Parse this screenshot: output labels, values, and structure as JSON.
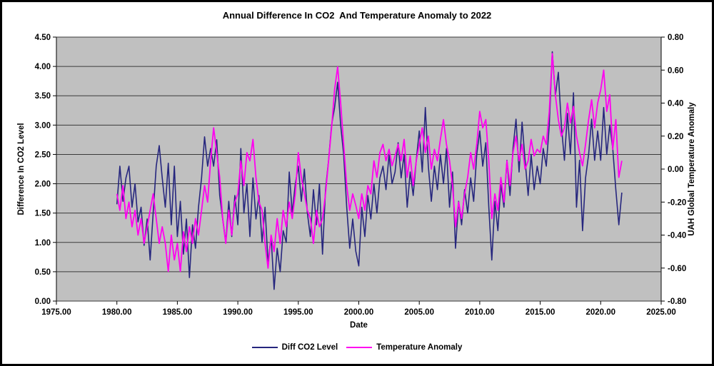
{
  "chart_data": {
    "type": "line",
    "title": "Annual Difference In CO2  And Temperature Anomaly to 2022",
    "xlabel": "Date",
    "ylabel": "Difference In CO2 Level",
    "ylabel_right": "UAH Global Temperature Anomaly",
    "xlim": [
      1975,
      2025
    ],
    "x_tick_labels": [
      "1975.00",
      "1980.00",
      "1985.00",
      "1990.00",
      "1995.00",
      "2000.00",
      "2005.00",
      "2010.00",
      "2015.00",
      "2020.00",
      "2025.00"
    ],
    "y_left": {
      "lim": [
        0,
        4.5
      ],
      "tick_labels": [
        "0.00",
        "0.50",
        "1.00",
        "1.50",
        "2.00",
        "2.50",
        "3.00",
        "3.50",
        "4.00",
        "4.50"
      ]
    },
    "y_right": {
      "lim": [
        -0.8,
        0.8
      ],
      "tick_labels": [
        "-0.80",
        "-0.60",
        "-0.40",
        "-0.20",
        "0.00",
        "0.20",
        "0.40",
        "0.60",
        "0.80"
      ]
    },
    "grid": true,
    "legend_position": "bottom",
    "plot_bg": "#c0c0c0",
    "grid_color": "#3a3a3a",
    "x_start": 1980.0,
    "x_step": 0.25,
    "series": [
      {
        "name": "Diff CO2 Level",
        "axis": "left",
        "color": "#26267e",
        "values": [
          1.65,
          2.3,
          1.7,
          2.1,
          2.3,
          1.6,
          2.0,
          1.35,
          1.6,
          0.95,
          1.4,
          0.7,
          1.5,
          2.3,
          2.65,
          2.1,
          1.6,
          2.35,
          1.3,
          2.3,
          1.1,
          1.7,
          0.8,
          1.4,
          0.4,
          1.3,
          0.9,
          1.6,
          2.1,
          2.8,
          2.3,
          2.6,
          2.3,
          2.75,
          1.8,
          1.4,
          1.0,
          1.7,
          1.1,
          1.8,
          1.3,
          2.6,
          1.5,
          2.0,
          1.1,
          2.1,
          1.4,
          1.8,
          1.0,
          1.6,
          0.65,
          1.1,
          0.2,
          0.9,
          0.5,
          1.2,
          1.0,
          2.2,
          1.5,
          2.0,
          2.3,
          1.7,
          2.25,
          1.5,
          1.1,
          1.9,
          1.3,
          2.0,
          0.8,
          1.9,
          2.4,
          3.0,
          3.3,
          3.73,
          3.0,
          2.5,
          1.6,
          0.9,
          1.4,
          0.85,
          0.6,
          1.6,
          1.1,
          1.8,
          1.4,
          2.0,
          1.5,
          2.1,
          2.3,
          1.9,
          2.5,
          2.0,
          2.2,
          2.7,
          2.1,
          2.5,
          1.6,
          2.2,
          1.8,
          2.4,
          2.9,
          2.2,
          3.3,
          2.3,
          1.7,
          2.3,
          1.9,
          2.5,
          2.0,
          2.6,
          1.6,
          2.2,
          0.9,
          1.7,
          1.3,
          1.9,
          1.5,
          2.1,
          1.7,
          2.5,
          2.9,
          2.3,
          2.7,
          1.6,
          0.7,
          1.7,
          1.2,
          2.0,
          1.6,
          2.4,
          1.8,
          2.6,
          3.1,
          2.2,
          3.05,
          2.4,
          1.8,
          2.5,
          1.9,
          2.3,
          2.0,
          2.6,
          2.3,
          3.0,
          4.25,
          3.5,
          3.9,
          3.0,
          2.4,
          3.2,
          2.5,
          3.55,
          1.6,
          2.4,
          1.2,
          2.1,
          2.5,
          3.1,
          2.4,
          2.9,
          2.4,
          3.3,
          2.5,
          3.0,
          2.6,
          1.9,
          1.3,
          1.85
        ]
      },
      {
        "name": "Temperature Anomaly",
        "axis": "right",
        "color": "#ff00f0",
        "values": [
          -0.15,
          -0.25,
          -0.1,
          -0.3,
          -0.2,
          -0.35,
          -0.25,
          -0.4,
          -0.3,
          -0.45,
          -0.35,
          -0.25,
          -0.15,
          -0.3,
          -0.45,
          -0.35,
          -0.45,
          -0.62,
          -0.4,
          -0.55,
          -0.45,
          -0.62,
          -0.38,
          -0.5,
          -0.35,
          -0.45,
          -0.3,
          -0.4,
          -0.25,
          -0.1,
          -0.2,
          0.05,
          0.25,
          0.1,
          -0.05,
          -0.3,
          -0.45,
          -0.25,
          -0.4,
          -0.2,
          -0.15,
          0.05,
          -0.1,
          0.1,
          0.05,
          0.18,
          -0.05,
          -0.2,
          -0.25,
          -0.45,
          -0.6,
          -0.4,
          -0.5,
          -0.3,
          -0.45,
          -0.25,
          -0.35,
          -0.2,
          -0.3,
          -0.15,
          0.1,
          -0.05,
          -0.15,
          -0.25,
          -0.3,
          -0.45,
          -0.25,
          -0.35,
          -0.3,
          -0.15,
          0.05,
          0.25,
          0.48,
          0.62,
          0.4,
          0.15,
          -0.1,
          -0.25,
          -0.15,
          -0.22,
          -0.3,
          -0.15,
          -0.25,
          -0.1,
          -0.15,
          0.05,
          -0.05,
          0.1,
          0.15,
          0.05,
          0.12,
          0.02,
          0.08,
          0.15,
          0.05,
          0.18,
          -0.05,
          0.08,
          -0.1,
          0.05,
          0.15,
          0.25,
          0.1,
          0.2,
          0.0,
          0.12,
          0.05,
          0.18,
          0.3,
          0.15,
          0.05,
          -0.1,
          -0.35,
          -0.2,
          -0.3,
          -0.15,
          -0.05,
          0.1,
          0.0,
          0.15,
          0.35,
          0.25,
          0.3,
          0.05,
          -0.3,
          -0.15,
          -0.25,
          -0.05,
          -0.2,
          0.05,
          -0.1,
          0.1,
          0.2,
          0.05,
          0.15,
          0.0,
          0.05,
          0.18,
          0.08,
          0.12,
          0.1,
          0.2,
          0.15,
          0.35,
          0.7,
          0.45,
          0.3,
          0.2,
          0.25,
          0.4,
          0.28,
          0.38,
          0.2,
          0.1,
          0.02,
          0.15,
          0.3,
          0.42,
          0.25,
          0.4,
          0.48,
          0.6,
          0.35,
          0.45,
          0.12,
          0.3,
          -0.05,
          0.05
        ]
      }
    ]
  }
}
